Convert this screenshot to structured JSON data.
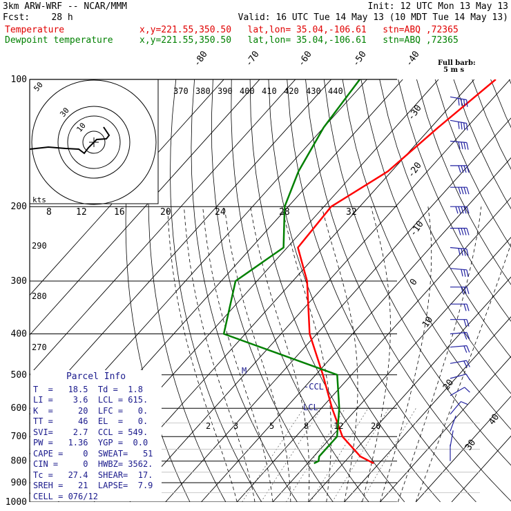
{
  "header": {
    "line1_left": "3km ARW-WRF -- NCAR/MMM",
    "line1_right": "Init: 12 UTC Mon 13 May 13",
    "line2_left": "Fcst:    28 h",
    "line2_right": "Valid: 16 UTC Tue 14 May 13 (10 MDT Tue 14 May 13)",
    "temp_label": "Temperature",
    "temp_info": "x,y=221.55,350.50   lat,lon= 35.04,-106.61   stn=ABQ ,72365",
    "dew_label": "Dewpoint temperature",
    "dew_info": "x,y=221.55,350.50   lat,lon= 35.04,-106.61   stn=ABQ ,72365"
  },
  "barb_legend": {
    "title": "Full barb:",
    "units": "5 m s"
  },
  "colors": {
    "temperature": "#ff0000",
    "dewpoint": "#008000",
    "annotation": "#1a1a8c",
    "isobar": "#000000",
    "barb": "#2020a0"
  },
  "chart_data": {
    "type": "line",
    "title": "",
    "ylabel": "",
    "y_scale": "log-pressure",
    "pressure_levels": [
      100,
      200,
      300,
      400,
      500,
      600,
      700,
      800,
      900,
      1000
    ],
    "isotherm_labels": [
      "-80",
      "-70",
      "-60",
      "-50",
      "-40",
      "-30",
      "-20",
      "-10",
      "0",
      "10",
      "20",
      "30",
      "40"
    ],
    "theta_e_labels": [
      "370",
      "380",
      "390",
      "400",
      "410",
      "420",
      "430",
      "440"
    ],
    "hodograph": {
      "units_label": "kts",
      "ring_labels": [
        "50",
        "30",
        "10"
      ],
      "speed_labels": [
        "8",
        "12",
        "16",
        "20",
        "24",
        "28",
        "32"
      ],
      "extra_labels": [
        "290",
        "280",
        "270"
      ]
    },
    "mixing_ratio_labels": [
      "2",
      "3",
      "5",
      "8",
      "12",
      "20"
    ],
    "annotations": [
      "M",
      "-CCL",
      "LCL"
    ],
    "series": [
      {
        "name": "Temperature",
        "points": [
          [
            -44,
            100
          ],
          [
            -48,
            130
          ],
          [
            -51,
            165
          ],
          [
            -58,
            200
          ],
          [
            -57,
            250
          ],
          [
            -46,
            300
          ],
          [
            -32,
            400
          ],
          [
            -18,
            500
          ],
          [
            -7,
            600
          ],
          [
            3,
            700
          ],
          [
            13,
            780
          ],
          [
            18.5,
            810
          ]
        ]
      },
      {
        "name": "Dewpoint temperature",
        "points": [
          [
            -82,
            100
          ],
          [
            -80,
            130
          ],
          [
            -76,
            165
          ],
          [
            -71,
            200
          ],
          [
            -61,
            250
          ],
          [
            -66,
            300
          ],
          [
            -56,
            400
          ],
          [
            -14,
            500
          ],
          [
            -5,
            600
          ],
          [
            1.5,
            700
          ],
          [
            1.5,
            780
          ],
          [
            2.5,
            800
          ],
          [
            1.8,
            810
          ]
        ]
      }
    ],
    "winds_ms": [
      {
        "p": 110,
        "dir": 280,
        "spd": 18
      },
      {
        "p": 125,
        "dir": 280,
        "spd": 20
      },
      {
        "p": 140,
        "dir": 275,
        "spd": 22
      },
      {
        "p": 160,
        "dir": 270,
        "spd": 22
      },
      {
        "p": 180,
        "dir": 270,
        "spd": 20
      },
      {
        "p": 200,
        "dir": 270,
        "spd": 25
      },
      {
        "p": 225,
        "dir": 270,
        "spd": 20
      },
      {
        "p": 250,
        "dir": 275,
        "spd": 18
      },
      {
        "p": 280,
        "dir": 275,
        "spd": 17
      },
      {
        "p": 310,
        "dir": 270,
        "spd": 15
      },
      {
        "p": 340,
        "dir": 270,
        "spd": 12
      },
      {
        "p": 370,
        "dir": 270,
        "spd": 10
      },
      {
        "p": 400,
        "dir": 265,
        "spd": 10
      },
      {
        "p": 430,
        "dir": 265,
        "spd": 9
      },
      {
        "p": 470,
        "dir": 260,
        "spd": 8
      },
      {
        "p": 510,
        "dir": 255,
        "spd": 6
      },
      {
        "p": 560,
        "dir": 240,
        "spd": 4
      },
      {
        "p": 620,
        "dir": 220,
        "spd": 3
      },
      {
        "p": 680,
        "dir": 200,
        "spd": 2
      },
      {
        "p": 740,
        "dir": 190,
        "spd": 2
      },
      {
        "p": 800,
        "dir": 180,
        "spd": 2
      }
    ]
  },
  "parcel_info": {
    "title": "Parcel Info",
    "rows": [
      "T  =   18.5  Td =  1.8",
      "LI =    3.6  LCL = 615.",
      "K  =     20  LFC =   0.",
      "TT =     46  EL  =   0.",
      "SVI=    2.7  CCL = 549.",
      "PW =   1.36  YGP =  0.0",
      "CAPE =    0  SWEAT=   51",
      "CIN =     0  HWBZ= 3562.",
      "Tc =   27.4  SHEAR=  17.",
      "SREH =   21  LAPSE=  7.9",
      "CELL = 076/12"
    ]
  }
}
